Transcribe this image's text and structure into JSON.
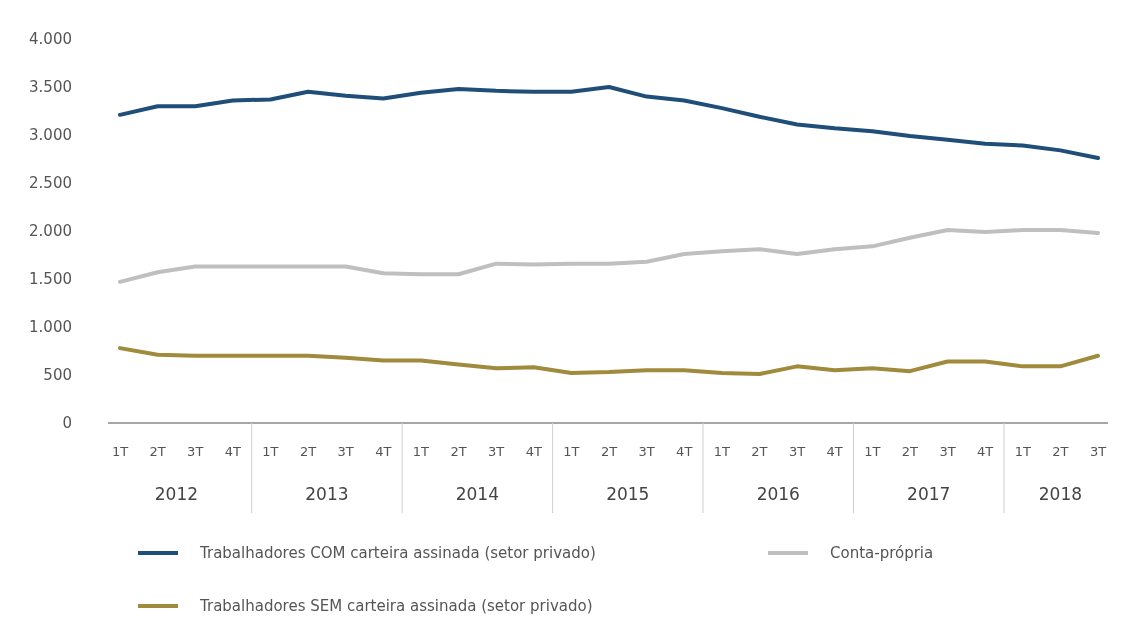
{
  "chart_data": {
    "type": "line",
    "categories": [
      "1T",
      "2T",
      "3T",
      "4T",
      "1T",
      "2T",
      "3T",
      "4T",
      "1T",
      "2T",
      "3T",
      "4T",
      "1T",
      "2T",
      "3T",
      "4T",
      "1T",
      "2T",
      "3T",
      "4T",
      "1T",
      "2T",
      "3T",
      "4T",
      "1T",
      "2T",
      "3T"
    ],
    "annotations": [
      "2012",
      "2013",
      "2014",
      "2015",
      "2016",
      "2017",
      "2018"
    ],
    "series": [
      {
        "name": "Trabalhadores COM carteira assinada (setor privado)",
        "color": "#1f4e79",
        "values": [
          3210,
          3300,
          3300,
          3360,
          3370,
          3450,
          3410,
          3380,
          3440,
          3480,
          3460,
          3450,
          3450,
          3500,
          3400,
          3360,
          3280,
          3190,
          3110,
          3070,
          3040,
          2990,
          2950,
          2910,
          2890,
          2840,
          2760
        ]
      },
      {
        "name": "Conta-própria",
        "color": "#bfbfbf",
        "values": [
          1470,
          1570,
          1630,
          1630,
          1630,
          1630,
          1630,
          1560,
          1550,
          1550,
          1660,
          1650,
          1660,
          1660,
          1680,
          1760,
          1790,
          1810,
          1760,
          1810,
          1840,
          1930,
          2010,
          1990,
          2010,
          2010,
          1980
        ]
      },
      {
        "name": "Trabalhadores SEM carteira assinada (setor privado)",
        "color": "#a08a3c",
        "values": [
          780,
          710,
          700,
          700,
          700,
          700,
          680,
          650,
          650,
          610,
          570,
          580,
          520,
          530,
          550,
          550,
          520,
          510,
          590,
          550,
          570,
          540,
          640,
          640,
          590,
          590,
          700
        ]
      }
    ],
    "ylim": [
      0,
      4000
    ],
    "yticks": [
      0,
      500,
      {
        "value": 1000,
        "label": "1.000"
      },
      {
        "value": 1500,
        "label": "1.500"
      },
      {
        "value": 2000,
        "label": "2.000"
      },
      {
        "value": 2500,
        "label": "2.500"
      },
      {
        "value": 3000,
        "label": "3.000"
      },
      {
        "value": 3500,
        "label": "3.500"
      },
      {
        "value": 4000,
        "label": "4.000"
      }
    ],
    "legend": "bottom",
    "grid": false
  }
}
